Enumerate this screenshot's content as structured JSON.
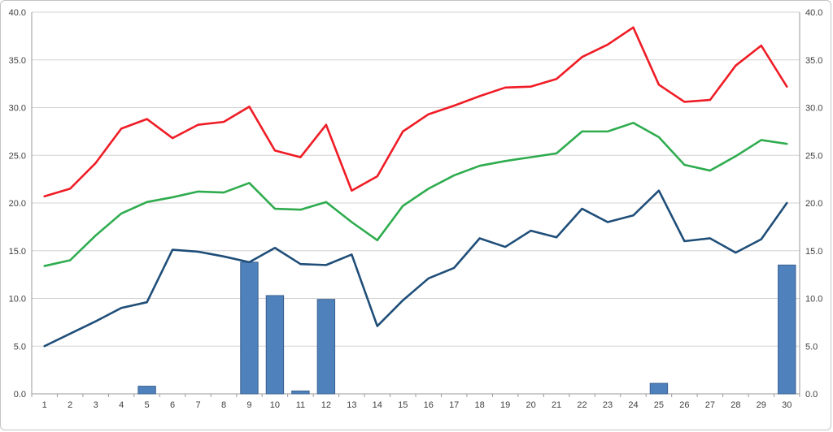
{
  "chart_data": {
    "type": "combo",
    "title": "",
    "xlabel": "",
    "ylabel": "",
    "categories": [
      "1",
      "2",
      "3",
      "4",
      "5",
      "6",
      "7",
      "8",
      "9",
      "10",
      "11",
      "12",
      "13",
      "14",
      "15",
      "16",
      "17",
      "18",
      "19",
      "20",
      "21",
      "22",
      "23",
      "24",
      "25",
      "26",
      "27",
      "28",
      "29",
      "30"
    ],
    "ylim": [
      0,
      40
    ],
    "ytick_step": 5,
    "ytick_labels": [
      "0.0",
      "5.0",
      "10.0",
      "15.0",
      "20.0",
      "25.0",
      "30.0",
      "35.0",
      "40.0"
    ],
    "grid": true,
    "legend": "none",
    "axes": {
      "left": true,
      "right": true,
      "bottom": true
    },
    "colors": {
      "gridline": "#d3d3d3",
      "axis": "#9a9a9a",
      "bar_fill": "#4f81bd",
      "bar_border": "#39618f",
      "red_line": "#ef1c25",
      "green_line": "#2eac4e",
      "blue_line": "#1f4e79"
    },
    "series": [
      {
        "name": "bars",
        "type": "bar",
        "color": "#4f81bd",
        "values": [
          0,
          0,
          0,
          0,
          0.8,
          0,
          0,
          0,
          13.8,
          10.3,
          0.3,
          9.9,
          0,
          0,
          0,
          0,
          0,
          0,
          0,
          0,
          0,
          0,
          0,
          0,
          1.1,
          0,
          0,
          0,
          0,
          13.5
        ]
      },
      {
        "name": "red",
        "type": "line",
        "color": "#ef1c25",
        "values": [
          20.7,
          21.5,
          24.2,
          27.8,
          28.8,
          26.8,
          28.2,
          28.5,
          30.1,
          25.5,
          24.8,
          28.2,
          21.3,
          22.8,
          27.5,
          29.3,
          30.2,
          31.2,
          32.1,
          32.2,
          33.0,
          35.3,
          36.6,
          38.4,
          32.4,
          30.6,
          30.8,
          34.4,
          36.5,
          32.2
        ]
      },
      {
        "name": "green",
        "type": "line",
        "color": "#2eac4e",
        "values": [
          13.4,
          14.0,
          16.6,
          18.9,
          20.1,
          20.6,
          21.2,
          21.1,
          22.1,
          19.4,
          19.3,
          20.1,
          18.0,
          16.1,
          19.7,
          21.5,
          22.9,
          23.9,
          24.4,
          24.8,
          25.2,
          27.5,
          27.5,
          28.4,
          26.9,
          24.0,
          23.4,
          24.9,
          26.6,
          26.2
        ]
      },
      {
        "name": "blue",
        "type": "line",
        "color": "#1f4e79",
        "values": [
          5.0,
          6.3,
          7.6,
          9.0,
          9.6,
          15.1,
          14.9,
          14.4,
          13.8,
          15.3,
          13.6,
          13.5,
          14.6,
          7.1,
          9.8,
          12.1,
          13.2,
          16.3,
          15.4,
          17.1,
          16.4,
          19.4,
          18.0,
          18.7,
          21.3,
          16.0,
          16.3,
          14.8,
          16.2,
          20.0
        ]
      }
    ]
  }
}
